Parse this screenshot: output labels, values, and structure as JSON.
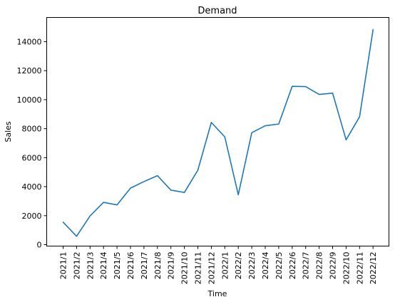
{
  "chart_data": {
    "type": "line",
    "title": "Demand",
    "xlabel": "Time",
    "ylabel": "Sales",
    "ylim": [
      0,
      15000
    ],
    "yticks": [
      0,
      2000,
      4000,
      6000,
      8000,
      10000,
      12000,
      14000
    ],
    "ytick_labels": [
      "0",
      "2000",
      "4000",
      "6000",
      "8000",
      "10000",
      "12000",
      "14000"
    ],
    "grid": false,
    "legend": "none",
    "categories": [
      "2021/1",
      "2021/2",
      "2021/3",
      "2021/4",
      "2021/5",
      "2021/6",
      "2021/7",
      "2021/8",
      "2021/9",
      "2021/10",
      "2021/11",
      "2021/12",
      "2022/1",
      "2022/2",
      "2022/3",
      "2022/4",
      "2022/5",
      "2022/6",
      "2022/7",
      "2022/8",
      "2022/9",
      "2022/10",
      "2022/11",
      "2022/12"
    ],
    "series": [
      {
        "color": "#1f77b4",
        "values": [
          1550,
          580,
          1980,
          2920,
          2740,
          3900,
          4350,
          4760,
          3760,
          3600,
          5140,
          8430,
          7430,
          3440,
          7720,
          8200,
          8320,
          10920,
          10900,
          10360,
          10450,
          7230,
          8820,
          14830
        ]
      }
    ]
  }
}
